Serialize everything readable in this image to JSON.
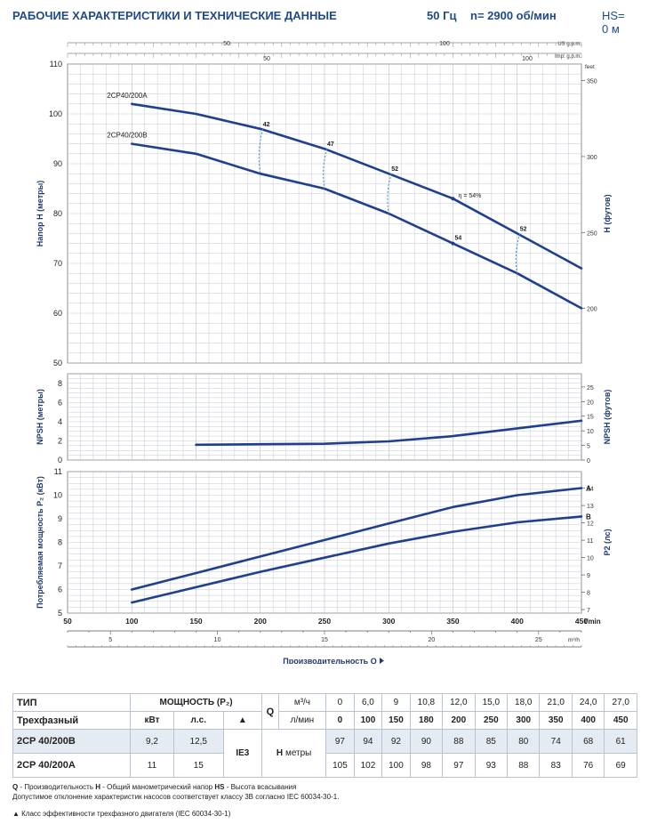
{
  "header": {
    "title": "РАБОЧИЕ ХАРАКТЕРИСТИКИ И ТЕХНИЧЕСКИЕ ДАННЫЕ",
    "freq": "50 Гц",
    "speed": "n= 2900 об/мин",
    "hs": "HS= 0 м"
  },
  "colors": {
    "curve": "#1f3f8f",
    "grid": "#c3c9d3",
    "text": "#1f3a73"
  },
  "top_axes": {
    "us_label": "US g.p.m.",
    "imp_label": "Imp. g.p.m.",
    "us_ticks": [
      "50",
      "100"
    ],
    "imp_ticks": [
      "50",
      "100"
    ]
  },
  "chart_data": [
    {
      "type": "line",
      "ylabel": "Напор H (метры)",
      "y2label": "H (футов)",
      "x_unit": "l/min",
      "xlim": [
        50,
        450
      ],
      "ylim": [
        50,
        110
      ],
      "ticks_y": [
        "110",
        "100",
        "90",
        "80",
        "70",
        "60",
        "50"
      ],
      "ticks_y2": [
        "350",
        "300",
        "250",
        "200"
      ],
      "ticks_y2_unit": "feet",
      "grid": true,
      "series": [
        {
          "name": "2CP40/200A",
          "x": [
            100,
            150,
            200,
            250,
            300,
            350,
            400,
            450
          ],
          "y": [
            102,
            100,
            97,
            93,
            88,
            83,
            76,
            69
          ]
        },
        {
          "name": "2CP40/200B",
          "x": [
            100,
            150,
            200,
            250,
            300,
            350,
            400,
            450
          ],
          "y": [
            94,
            92,
            88,
            85,
            80,
            74,
            68,
            61
          ]
        }
      ],
      "efficiency_labels": [
        {
          "label": "42",
          "x": 200
        },
        {
          "label": "47",
          "x": 250
        },
        {
          "label": "52",
          "x": 300
        },
        {
          "label": "η = 54%",
          "x": 350
        },
        {
          "label": "54",
          "x": 350
        },
        {
          "label": "52",
          "x": 400
        }
      ]
    },
    {
      "type": "line",
      "ylabel": "NPSH (метры)",
      "y2label": "NPSH (футов)",
      "xlim": [
        50,
        450
      ],
      "ylim": [
        0,
        9
      ],
      "ticks_y": [
        "8",
        "6",
        "4",
        "2",
        "0"
      ],
      "ticks_y2": [
        "25",
        "20",
        "15",
        "10",
        "5",
        "0"
      ],
      "grid": true,
      "series": [
        {
          "x": [
            150,
            200,
            250,
            300,
            350,
            400,
            450
          ],
          "y": [
            1.6,
            1.65,
            1.7,
            1.95,
            2.5,
            3.3,
            4.1
          ]
        }
      ]
    },
    {
      "type": "line",
      "ylabel": "Потребляемая мощность P₂ (кВт)",
      "y2label": "P2 (лс)",
      "xlabel": "Производительность Q",
      "xlim": [
        50,
        450
      ],
      "ylim": [
        5,
        11
      ],
      "ticks_y": [
        "11",
        "10",
        "9",
        "8",
        "7",
        "6",
        "5"
      ],
      "ticks_y2": [
        "14",
        "13",
        "12",
        "11",
        "10",
        "9",
        "8",
        "7"
      ],
      "ticks_x": [
        "50",
        "100",
        "150",
        "200",
        "250",
        "300",
        "350",
        "400",
        "450"
      ],
      "ticks_x_unit": "l/min",
      "ticks_x2": [
        "5",
        "10",
        "15",
        "20",
        "25"
      ],
      "ticks_x2_unit": "m³/h",
      "grid": true,
      "series": [
        {
          "name": "A",
          "x": [
            100,
            150,
            200,
            250,
            300,
            350,
            400,
            450
          ],
          "y": [
            6.0,
            6.7,
            7.4,
            8.1,
            8.8,
            9.5,
            10.0,
            10.3
          ]
        },
        {
          "name": "B",
          "x": [
            100,
            150,
            200,
            250,
            300,
            350,
            400,
            450
          ],
          "y": [
            5.45,
            6.1,
            6.75,
            7.35,
            7.95,
            8.45,
            8.85,
            9.1
          ]
        }
      ]
    }
  ],
  "table": {
    "h_type": "ТИП",
    "h_power": "МОЩНОСТЬ (P₂)",
    "h_three": "Трехфазный",
    "h_kw": "кВт",
    "h_hp": "л.с.",
    "h_tri": "▲",
    "h_q": "Q",
    "h_m3": "м³/ч",
    "h_lmin": "л/мин",
    "h_ie": "IE3",
    "h_h": "H",
    "h_hunit": "метры",
    "q_m3h": [
      "0",
      "6,0",
      "9",
      "10,8",
      "12,0",
      "15,0",
      "18,0",
      "21,0",
      "24,0",
      "27,0"
    ],
    "q_lmin": [
      "0",
      "100",
      "150",
      "180",
      "200",
      "250",
      "300",
      "350",
      "400",
      "450"
    ],
    "rows": [
      {
        "model": "2CP 40/200B",
        "kw": "9,2",
        "hp": "12,5",
        "h": [
          "97",
          "94",
          "92",
          "90",
          "88",
          "85",
          "80",
          "74",
          "68",
          "61"
        ]
      },
      {
        "model": "2CP 40/200A",
        "kw": "11",
        "hp": "15",
        "h": [
          "105",
          "102",
          "100",
          "98",
          "97",
          "93",
          "88",
          "83",
          "76",
          "69"
        ]
      }
    ]
  },
  "notes": {
    "q": "Q",
    "q_text": " - Производительность  ",
    "h": "H",
    "h_text": " - Общий манометрический напор  ",
    "hs": "HS",
    "hs_text": " - Высота всасывания",
    "line2": "Допустимое отклонение характеристик насосов соответствует классу 3B согласно IEC 60034-30-1.",
    "line3": "▲  Класс эффективности трехфазного двигателя (IEC 60034-30-1)"
  }
}
